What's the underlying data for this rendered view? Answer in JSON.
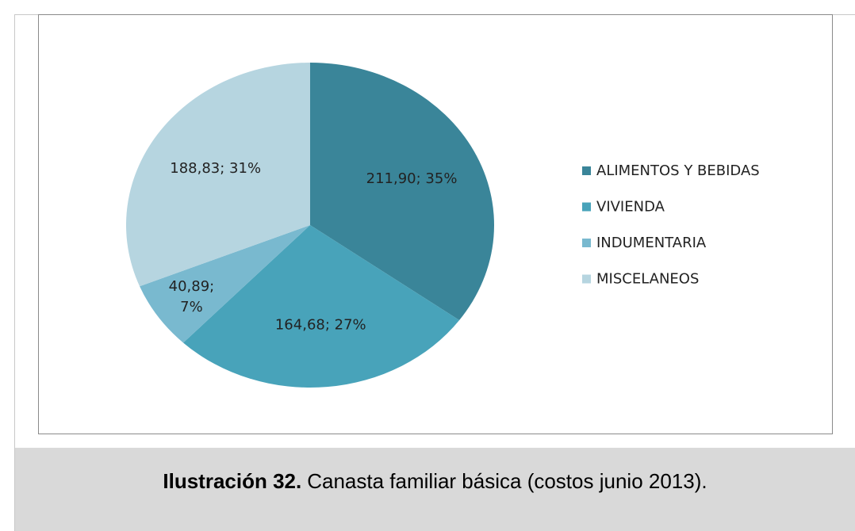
{
  "chart_data": {
    "type": "pie",
    "categories": [
      "ALIMENTOS Y BEBIDAS",
      "VIVIENDA",
      "INDUMENTARIA",
      "MISCELANEOS"
    ],
    "values": [
      211.9,
      164.68,
      40.89,
      188.83
    ],
    "value_labels": [
      "211,90; 35%",
      "164,68; 27%",
      "40,89; 7%",
      "188,83; 31%"
    ],
    "colors": [
      "#3a8599",
      "#48a3ba",
      "#79b9cf",
      "#b6d5e0"
    ],
    "legend": "right"
  },
  "caption": {
    "label": "Ilustración 32.",
    "text": "Canasta familiar básica (costos junio 2013)."
  }
}
